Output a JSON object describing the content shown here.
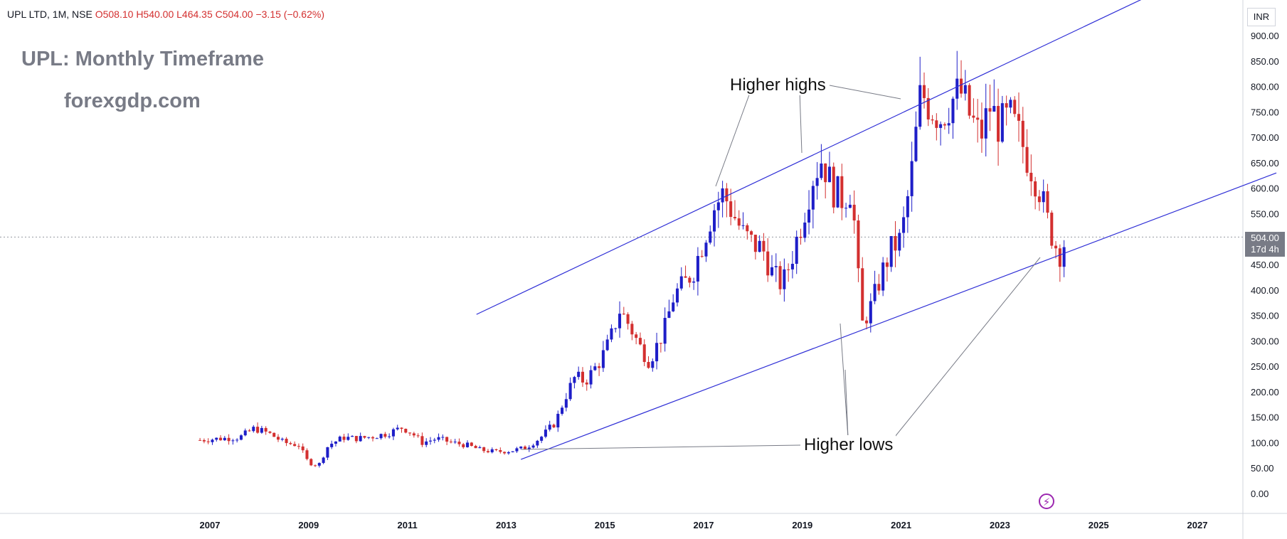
{
  "header": {
    "symbol": "UPL LTD, 1M, NSE",
    "open": "O508.10",
    "high": "H540.00",
    "low": "L464.35",
    "close": "C504.00",
    "change": "−3.15 (−0.62%)"
  },
  "watermark": {
    "title": "UPL: Monthly Timeframe",
    "site": "forexgdp.com"
  },
  "annotations": {
    "higher_highs": "Higher highs",
    "higher_lows": "Higher lows"
  },
  "price_axis": {
    "unit": "INR",
    "last_price": "504.00",
    "countdown": "17d 4h"
  },
  "colors": {
    "up": "#1e1ec8",
    "down": "#d32f2f",
    "trendline": "#2e2ed6",
    "pointer": "#787b86",
    "last_price_line": "#9598a1"
  },
  "icons": [
    "lightning-icon"
  ],
  "chart_data": {
    "type": "candlestick",
    "title": "UPL: Monthly Timeframe",
    "ylim": [
      -20,
      920
    ],
    "xlim": [
      2006.0,
      2028.7
    ],
    "y_ticks": [
      0,
      50,
      100,
      150,
      200,
      250,
      300,
      350,
      400,
      450,
      500,
      550,
      600,
      650,
      700,
      750,
      800,
      850,
      900
    ],
    "y_tick_labels": [
      "0.00",
      "50.00",
      "100.00",
      "150.00",
      "200.00",
      "250.00",
      "300.00",
      "350.00",
      "400.00",
      "450.00",
      "500.00",
      "550.00",
      "600.00",
      "650.00",
      "700.00",
      "750.00",
      "800.00",
      "850.00",
      "900.00"
    ],
    "x_ticks": [
      2007,
      2009,
      2011,
      2013,
      2015,
      2017,
      2019,
      2021,
      2023,
      2025,
      2027
    ],
    "x_tick_labels": [
      "2007",
      "2009",
      "2011",
      "2013",
      "2015",
      "2017",
      "2019",
      "2021",
      "2023",
      "2025",
      "2027"
    ],
    "grid": false,
    "last_close": 504.0,
    "close_series": [
      [
        2006.8,
        105
      ],
      [
        2007.2,
        108
      ],
      [
        2007.6,
        110
      ],
      [
        2007.9,
        128
      ],
      [
        2008.2,
        118
      ],
      [
        2008.5,
        100
      ],
      [
        2008.8,
        95
      ],
      [
        2009.0,
        60
      ],
      [
        2009.2,
        55
      ],
      [
        2009.4,
        95
      ],
      [
        2009.7,
        110
      ],
      [
        2010.0,
        108
      ],
      [
        2010.3,
        112
      ],
      [
        2010.6,
        118
      ],
      [
        2010.9,
        130
      ],
      [
        2011.1,
        118
      ],
      [
        2011.3,
        100
      ],
      [
        2011.6,
        108
      ],
      [
        2011.9,
        100
      ],
      [
        2012.2,
        95
      ],
      [
        2012.5,
        85
      ],
      [
        2012.8,
        82
      ],
      [
        2013.1,
        84
      ],
      [
        2013.4,
        90
      ],
      [
        2013.7,
        110
      ],
      [
        2014.0,
        140
      ],
      [
        2014.2,
        190
      ],
      [
        2014.4,
        230
      ],
      [
        2014.6,
        220
      ],
      [
        2014.9,
        260
      ],
      [
        2015.1,
        300
      ],
      [
        2015.3,
        360
      ],
      [
        2015.5,
        330
      ],
      [
        2015.7,
        290
      ],
      [
        2015.9,
        260
      ],
      [
        2016.2,
        320
      ],
      [
        2016.4,
        390
      ],
      [
        2016.6,
        410
      ],
      [
        2016.8,
        440
      ],
      [
        2017.0,
        500
      ],
      [
        2017.2,
        560
      ],
      [
        2017.4,
        590
      ],
      [
        2017.6,
        550
      ],
      [
        2017.8,
        510
      ],
      [
        2018.0,
        490
      ],
      [
        2018.2,
        480
      ],
      [
        2018.4,
        430
      ],
      [
        2018.6,
        410
      ],
      [
        2018.8,
        470
      ],
      [
        2019.0,
        540
      ],
      [
        2019.2,
        620
      ],
      [
        2019.4,
        660
      ],
      [
        2019.6,
        600
      ],
      [
        2019.8,
        580
      ],
      [
        2020.0,
        600
      ],
      [
        2020.2,
        330
      ],
      [
        2020.4,
        370
      ],
      [
        2020.6,
        430
      ],
      [
        2020.8,
        480
      ],
      [
        2021.0,
        500
      ],
      [
        2021.2,
        620
      ],
      [
        2021.4,
        790
      ],
      [
        2021.6,
        760
      ],
      [
        2021.8,
        740
      ],
      [
        2022.0,
        770
      ],
      [
        2022.2,
        790
      ],
      [
        2022.4,
        740
      ],
      [
        2022.6,
        700
      ],
      [
        2022.8,
        760
      ],
      [
        2023.0,
        720
      ],
      [
        2023.2,
        740
      ],
      [
        2023.4,
        700
      ],
      [
        2023.6,
        650
      ],
      [
        2023.8,
        600
      ],
      [
        2023.95,
        540
      ],
      [
        2024.05,
        510
      ],
      [
        2024.2,
        470
      ],
      [
        2024.35,
        504
      ]
    ],
    "trendlines": [
      {
        "name": "upper-channel",
        "points": [
          [
            2012.4,
            352
          ],
          [
            2026.5,
            1000
          ]
        ]
      },
      {
        "name": "lower-channel",
        "points": [
          [
            2013.3,
            67
          ],
          [
            2028.6,
            630
          ]
        ]
      }
    ]
  }
}
